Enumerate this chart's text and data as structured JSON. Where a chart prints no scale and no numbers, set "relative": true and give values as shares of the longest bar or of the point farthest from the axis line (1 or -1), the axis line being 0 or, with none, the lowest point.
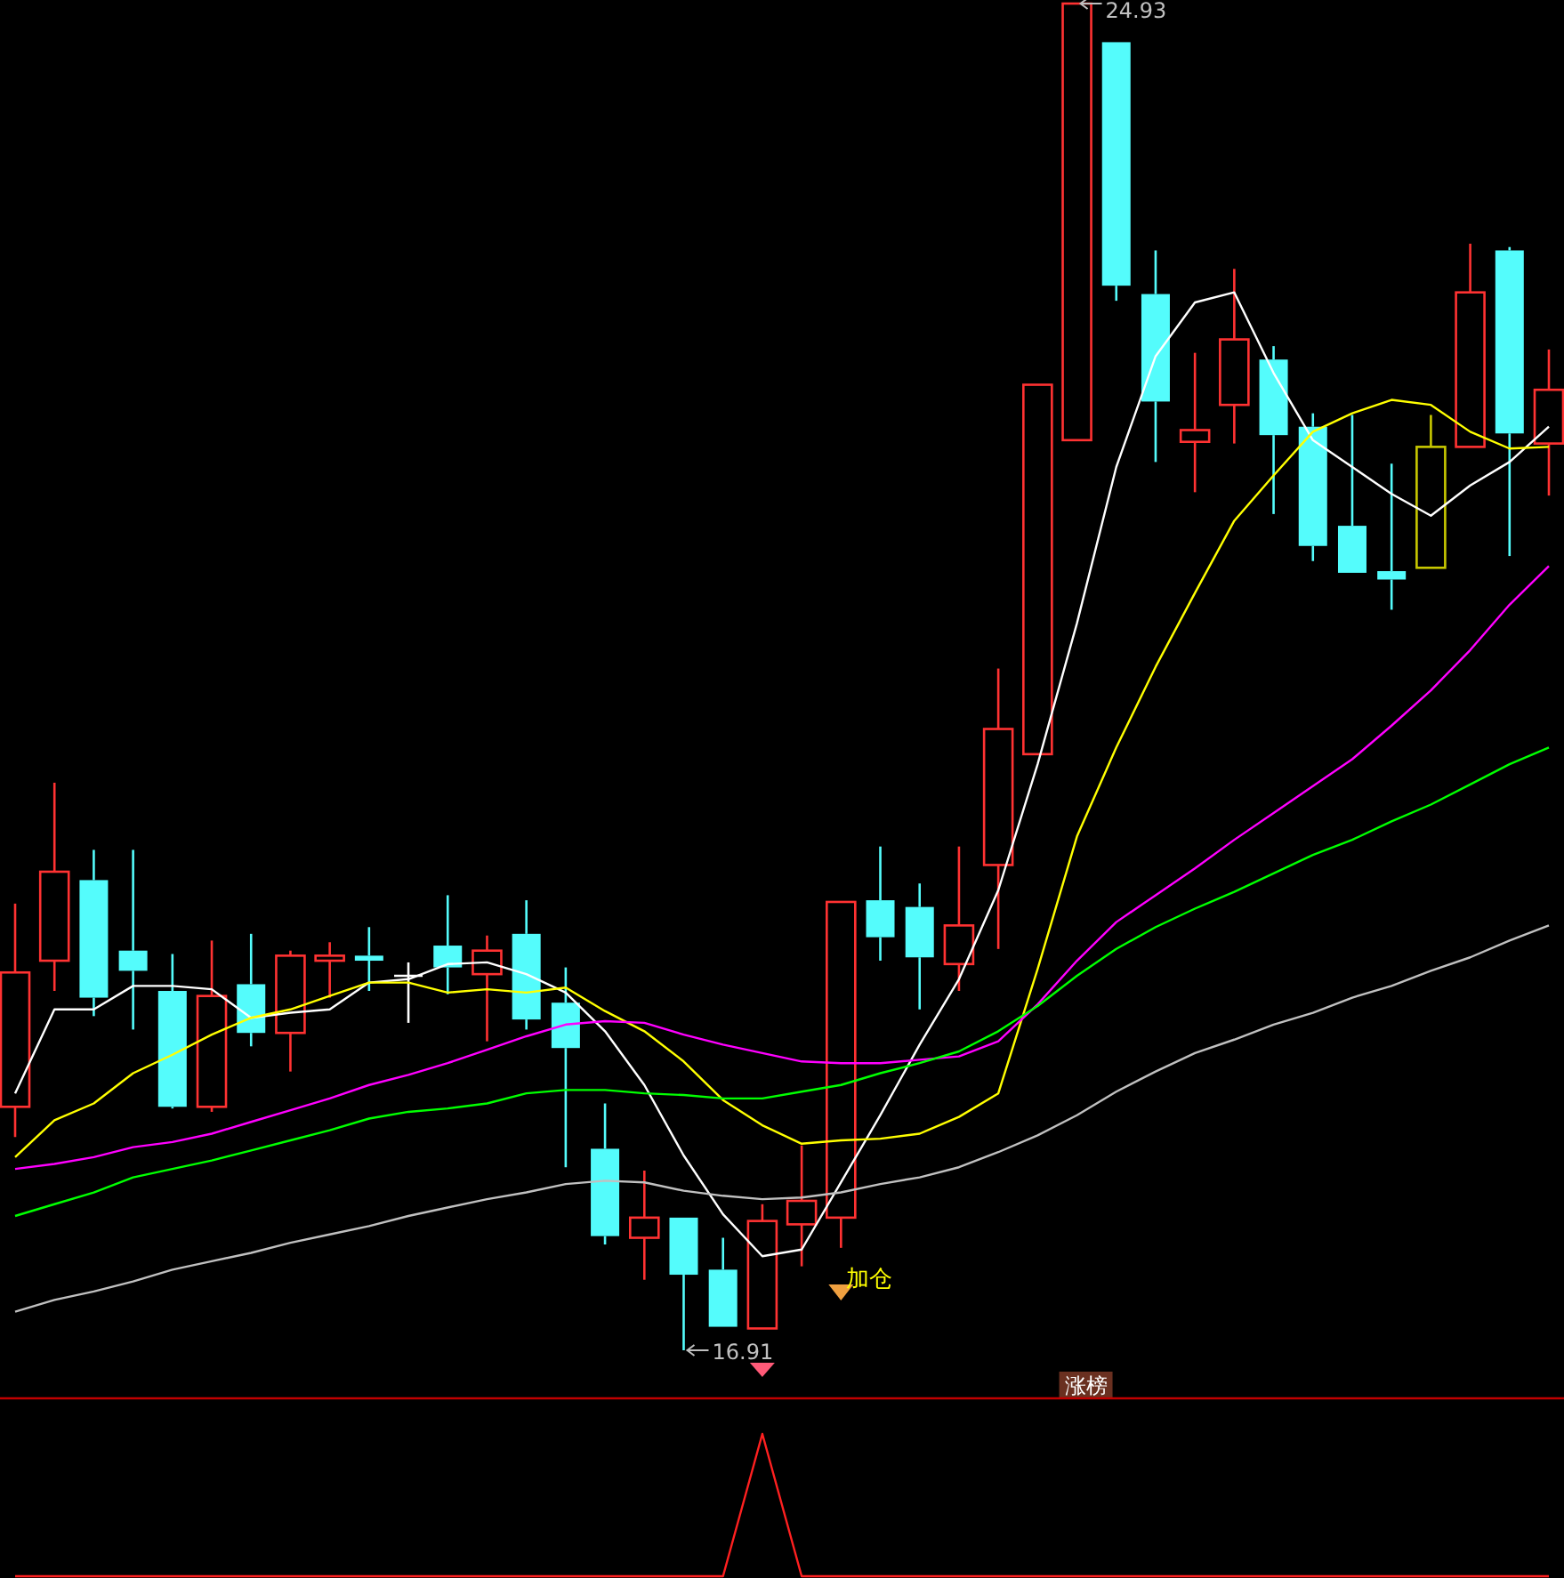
{
  "chart_data": [
    {
      "type": "candlestick",
      "categories": [
        null,
        null,
        null,
        null,
        null,
        null,
        null,
        null,
        null,
        null,
        null,
        null,
        null,
        null,
        null,
        null,
        null,
        null,
        null,
        null,
        null,
        null,
        null,
        null,
        null,
        null,
        null,
        null,
        null,
        null,
        null,
        null,
        null,
        null,
        null,
        null,
        null,
        null,
        null,
        null
      ],
      "ohlc": [
        [
          18.36,
          19.57,
          18.18,
          19.16
        ],
        [
          19.23,
          20.29,
          19.05,
          19.76
        ],
        [
          19.71,
          19.89,
          18.9,
          19.01
        ],
        [
          19.29,
          19.89,
          18.82,
          19.17
        ],
        [
          19.05,
          19.27,
          18.35,
          18.36
        ],
        [
          18.36,
          19.35,
          18.33,
          19.02
        ],
        [
          19.09,
          19.39,
          18.72,
          18.8
        ],
        [
          18.8,
          19.29,
          18.57,
          19.26
        ],
        [
          19.23,
          19.34,
          19.01,
          19.26
        ],
        [
          19.26,
          19.43,
          19.05,
          19.23
        ],
        [
          19.14,
          19.22,
          18.86,
          19.14
        ],
        [
          19.32,
          19.62,
          19.03,
          19.19
        ],
        [
          19.15,
          19.38,
          18.75,
          19.29
        ],
        [
          19.39,
          19.59,
          18.82,
          18.88
        ],
        [
          18.98,
          19.19,
          18.0,
          18.71
        ],
        [
          18.11,
          18.38,
          17.54,
          17.59
        ],
        [
          17.58,
          17.98,
          17.33,
          17.7
        ],
        [
          17.7,
          17.7,
          16.91,
          17.36
        ],
        [
          17.39,
          17.58,
          17.05,
          17.05
        ],
        [
          17.04,
          17.78,
          17.04,
          17.68
        ],
        [
          17.66,
          18.13,
          17.41,
          17.8
        ],
        [
          17.7,
          19.58,
          17.52,
          19.58
        ],
        [
          19.59,
          19.91,
          19.23,
          19.37
        ],
        [
          19.55,
          19.69,
          18.94,
          19.25
        ],
        [
          19.21,
          19.91,
          19.05,
          19.44
        ],
        [
          19.8,
          20.97,
          19.3,
          20.61
        ],
        [
          20.46,
          22.66,
          20.46,
          22.66
        ],
        [
          22.33,
          24.93,
          22.33,
          24.93
        ],
        [
          24.7,
          24.7,
          23.16,
          23.25
        ],
        [
          23.2,
          23.46,
          22.2,
          22.56
        ],
        [
          22.32,
          22.85,
          22.02,
          22.39
        ],
        [
          22.54,
          23.35,
          22.31,
          22.93
        ],
        [
          22.81,
          22.89,
          21.89,
          22.36
        ],
        [
          22.41,
          22.49,
          21.61,
          21.7
        ],
        [
          21.82,
          22.48,
          21.54,
          21.54
        ],
        [
          21.55,
          22.19,
          21.32,
          21.5
        ],
        [
          21.57,
          22.48,
          21.57,
          22.29
        ],
        [
          22.29,
          23.5,
          22.29,
          23.21
        ],
        [
          23.46,
          23.48,
          21.64,
          22.37
        ],
        [
          22.31,
          22.87,
          22.0,
          22.63
        ]
      ],
      "colors": [
        "#ff3232",
        "#ff3232",
        "#54fcfc",
        "#54fcfc",
        "#54fcfc",
        "#ff3232",
        "#54fcfc",
        "#ff3232",
        "#ff3232",
        "#54fcfc",
        "#ffffff",
        "#54fcfc",
        "#ff3232",
        "#54fcfc",
        "#54fcfc",
        "#54fcfc",
        "#ff3232",
        "#54fcfc",
        "#54fcfc",
        "#ff3232",
        "#ff3232",
        "#ff3232",
        "#54fcfc",
        "#54fcfc",
        "#ff3232",
        "#ff3232",
        "#ff3232",
        "#ff3232",
        "#54fcfc",
        "#54fcfc",
        "#ff3232",
        "#ff3232",
        "#54fcfc",
        "#54fcfc",
        "#54fcfc",
        "#54fcfc",
        "#c8c800",
        "#ff3232",
        "#54fcfc",
        "#ff3232"
      ],
      "series": [
        {
          "type": "line",
          "color": "#ffffff",
          "values": [
            18.44,
            18.94,
            18.94,
            19.08,
            19.08,
            19.06,
            18.89,
            18.92,
            18.94,
            19.1,
            19.12,
            19.21,
            19.22,
            19.15,
            19.04,
            18.81,
            18.49,
            18.07,
            17.72,
            17.47,
            17.51,
            17.91,
            18.31,
            18.73,
            19.12,
            19.65,
            20.4,
            21.24,
            22.17,
            22.83,
            23.15,
            23.21,
            22.73,
            22.33,
            22.17,
            22.01,
            21.88,
            22.06,
            22.2,
            22.41
          ]
        },
        {
          "type": "line",
          "color": "#ffff00",
          "values": [
            18.06,
            18.28,
            18.38,
            18.56,
            18.67,
            18.79,
            18.89,
            18.94,
            19.02,
            19.1,
            19.1,
            19.04,
            19.06,
            19.04,
            19.07,
            18.93,
            18.81,
            18.63,
            18.4,
            18.25,
            18.14,
            18.16,
            18.17,
            18.2,
            18.3,
            18.44,
            19.18,
            19.97,
            20.5,
            20.98,
            21.42,
            21.85,
            22.12,
            22.38,
            22.49,
            22.57,
            22.54,
            22.38,
            22.28,
            22.29
          ]
        },
        {
          "type": "line",
          "color": "#ff00ff",
          "values": [
            17.99,
            18.02,
            18.06,
            18.12,
            18.15,
            18.2,
            18.27,
            18.34,
            18.41,
            18.49,
            18.55,
            18.62,
            18.7,
            18.78,
            18.85,
            18.87,
            18.86,
            18.79,
            18.73,
            18.68,
            18.63,
            18.62,
            18.62,
            18.64,
            18.66,
            18.75,
            18.97,
            19.23,
            19.46,
            19.62,
            19.78,
            19.95,
            20.11,
            20.27,
            20.43,
            20.63,
            20.84,
            21.08,
            21.35,
            21.58
          ]
        },
        {
          "type": "line",
          "color": "#00ff00",
          "values": [
            17.71,
            17.78,
            17.85,
            17.94,
            17.99,
            18.04,
            18.1,
            18.16,
            18.22,
            18.29,
            18.33,
            18.35,
            18.38,
            18.44,
            18.46,
            18.46,
            18.44,
            18.43,
            18.41,
            18.41,
            18.45,
            18.49,
            18.56,
            18.62,
            18.69,
            18.81,
            18.96,
            19.14,
            19.3,
            19.43,
            19.54,
            19.64,
            19.75,
            19.86,
            19.95,
            20.06,
            20.16,
            20.28,
            20.4,
            20.5
          ]
        },
        {
          "type": "line",
          "color": "#c0c0c0",
          "values": [
            17.14,
            17.21,
            17.26,
            17.32,
            17.39,
            17.44,
            17.49,
            17.55,
            17.6,
            17.65,
            17.71,
            17.76,
            17.81,
            17.85,
            17.9,
            17.92,
            17.91,
            17.86,
            17.83,
            17.81,
            17.82,
            17.85,
            17.9,
            17.94,
            18.0,
            18.09,
            18.19,
            18.31,
            18.45,
            18.57,
            18.68,
            18.76,
            18.85,
            18.92,
            19.01,
            19.08,
            19.17,
            19.25,
            19.35,
            19.44
          ]
        }
      ],
      "annotations": [
        "24.93",
        "16.91",
        "加仓",
        "涨榜"
      ]
    },
    {
      "type": "line",
      "relative": true,
      "categories": [
        null,
        null,
        null,
        null,
        null,
        null,
        null,
        null,
        null,
        null,
        null,
        null,
        null,
        null,
        null,
        null,
        null,
        null,
        null,
        null,
        null,
        null,
        null,
        null,
        null,
        null,
        null,
        null,
        null,
        null,
        null,
        null,
        null,
        null,
        null,
        null,
        null,
        null,
        null,
        null
      ],
      "values": [
        0,
        0,
        0,
        0,
        0,
        0,
        0,
        0,
        0,
        0,
        0,
        0,
        0,
        0,
        0,
        0,
        0,
        0,
        0,
        1,
        0,
        0,
        0,
        0,
        0,
        0,
        0,
        0,
        0,
        0,
        0,
        0,
        0,
        0,
        0,
        0,
        0,
        0,
        0,
        0
      ],
      "color": "#ff2020"
    }
  ]
}
